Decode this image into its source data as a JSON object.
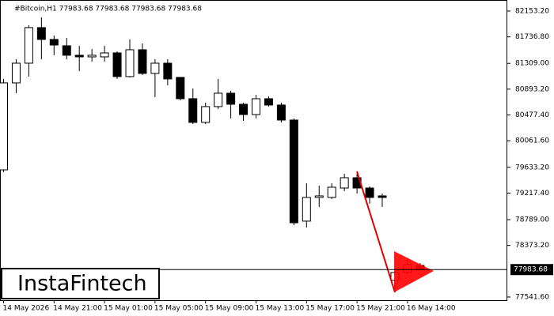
{
  "chart_data": {
    "type": "candlestick",
    "title": "#Bitcoin,H1  77983.68 77983.68 77983.68 77983.68",
    "brand": "InstaFintech",
    "categories": [
      "14 May 2026",
      null,
      null,
      null,
      "14 May 21:00",
      null,
      null,
      null,
      "15 May 01:00",
      null,
      null,
      null,
      "15 May 05:00",
      null,
      null,
      null,
      "15 May 09:00",
      null,
      null,
      null,
      "15 May 13:00",
      null,
      null,
      null,
      "15 May 17:00",
      null,
      null,
      null,
      "15 May 21:00",
      null,
      null,
      null,
      "16 May 14:00",
      null
    ],
    "open": [
      79592,
      80994,
      81312,
      81886,
      81695,
      81593,
      81440,
      81414,
      81414,
      81478,
      81096,
      81529,
      81147,
      81312,
      81083,
      80739,
      80357,
      80612,
      80828,
      80650,
      80484,
      80739,
      80637,
      80395,
      78765,
      79147,
      79147,
      79299,
      79465,
      79299,
      79172,
      77809,
      77936,
      78051
    ],
    "high": [
      81058,
      81376,
      81924,
      82051,
      81758,
      81720,
      81593,
      81542,
      81593,
      81503,
      81695,
      81631,
      81376,
      81376,
      81083,
      80905,
      80675,
      81058,
      80866,
      80675,
      80803,
      80777,
      80675,
      80421,
      79376,
      79338,
      79376,
      79529,
      79529,
      79325,
      79210,
      77962,
      78153,
      78089
    ],
    "low": [
      79554,
      80828,
      81096,
      81376,
      81440,
      81376,
      81185,
      81338,
      81338,
      81058,
      81083,
      81121,
      80765,
      80956,
      80714,
      80331,
      80331,
      80573,
      80421,
      80382,
      80421,
      80612,
      80357,
      78701,
      78663,
      78994,
      79121,
      79249,
      79210,
      79045,
      78994,
      77618,
      77911,
      77962
    ],
    "close": [
      80994,
      81312,
      81886,
      81695,
      81605,
      81440,
      81414,
      81440,
      81478,
      81096,
      81529,
      81147,
      81312,
      81058,
      80739,
      80357,
      80612,
      80828,
      80650,
      80484,
      80739,
      80637,
      80395,
      78739,
      79147,
      79172,
      79312,
      79465,
      79299,
      79147,
      79147,
      77936,
      78064,
      77983.68
    ],
    "up_color": "#ffffff",
    "down_color": "#000000",
    "current_price": 77983.68,
    "ylim": [
      77490,
      82331
    ],
    "yticks": [
      {
        "value": 82153.2,
        "label": "82153.20"
      },
      {
        "value": 81736.8,
        "label": "81736.80"
      },
      {
        "value": 81309,
        "label": "81309.00"
      },
      {
        "value": 80893.2,
        "label": "80893.20"
      },
      {
        "value": 80477.4,
        "label": "80477.40"
      },
      {
        "value": 80061.6,
        "label": "80061.60"
      },
      {
        "value": 79633.2,
        "label": "79633.20"
      },
      {
        "value": 79217.4,
        "label": "79217.40"
      },
      {
        "value": 78789,
        "label": "78789.00"
      },
      {
        "value": 78373.2,
        "label": "78373.20"
      },
      {
        "value": 77541.6,
        "label": "77541.60"
      }
    ]
  }
}
